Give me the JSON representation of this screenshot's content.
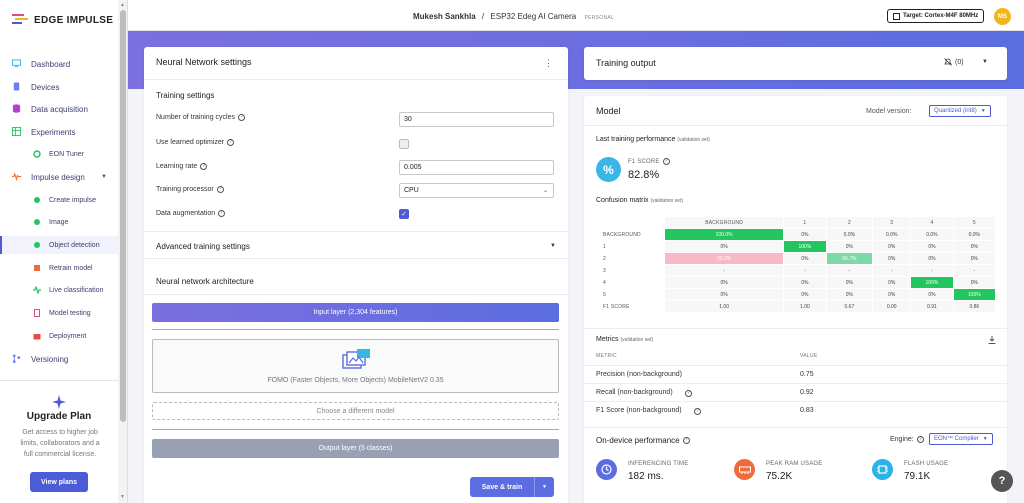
{
  "app": {
    "logo": "EDGE IMPULSE"
  },
  "sidebar": {
    "items": [
      {
        "label": "Dashboard",
        "icon": "monitor-icon"
      },
      {
        "label": "Devices",
        "icon": "device-icon"
      },
      {
        "label": "Data acquisition",
        "icon": "database-icon"
      },
      {
        "label": "Experiments",
        "icon": "table-icon"
      },
      {
        "label": "EON Tuner",
        "icon": "tuner-icon"
      },
      {
        "label": "Impulse design",
        "icon": "pulse-icon"
      },
      {
        "label": "Create impulse"
      },
      {
        "label": "Image"
      },
      {
        "label": "Object detection"
      },
      {
        "label": "Retrain model",
        "icon": "retrain-icon"
      },
      {
        "label": "Live classification",
        "icon": "live-icon"
      },
      {
        "label": "Model testing",
        "icon": "test-icon"
      },
      {
        "label": "Deployment",
        "icon": "deploy-icon"
      },
      {
        "label": "Versioning",
        "icon": "branch-icon"
      }
    ],
    "upgrade": {
      "title": "Upgrade Plan",
      "text": "Get access to higher job limits, collaborators and a full commercial license.",
      "button": "View plans"
    }
  },
  "header": {
    "user": "Mukesh Sankhla",
    "separator": "/",
    "project": "ESP32 Edeg AI Camera",
    "badge": "PERSONAL",
    "target": "Target: Cortex-M4F 80MHz",
    "avatar": "MS"
  },
  "nn_settings": {
    "title": "Neural Network settings",
    "section": "Training settings",
    "fields": {
      "cycles_label": "Number of training cycles",
      "cycles_value": "30",
      "optimizer_label": "Use learned optimizer",
      "optimizer_checked": false,
      "lr_label": "Learning rate",
      "lr_value": "0.005",
      "processor_label": "Training processor",
      "processor_value": "CPU",
      "augmentation_label": "Data augmentation",
      "augmentation_checked": true
    },
    "advanced": "Advanced training settings",
    "architecture_title": "Neural network architecture",
    "input_layer": "Input layer (2,304 features)",
    "model_name": "FOMO (Faster Objects, More Objects) MobileNetV2 0.35",
    "choose_model": "Choose a different model",
    "output_layer": "Output layer (5 classes)",
    "save_train": "Save & train"
  },
  "training_output": {
    "title": "Training output",
    "warnings": "(0)"
  },
  "model": {
    "title": "Model",
    "version_label": "Model version:",
    "version_value": "Quantized (int8)",
    "last_perf": "Last training performance",
    "validation_set": "(validation set)",
    "f1_label": "F1 SCORE",
    "f1_value": "82.8%",
    "confusion_title": "Confusion matrix",
    "confusion": {
      "columns": [
        "BACKGROUND",
        "1",
        "2",
        "3",
        "4",
        "5"
      ],
      "rows": [
        {
          "label": "BACKGROUND",
          "cells": [
            "100.0%",
            "0%",
            "0.0%",
            "0.0%",
            "0.0%",
            "0.0%"
          ]
        },
        {
          "label": "1",
          "cells": [
            "0%",
            "100%",
            "0%",
            "0%",
            "0%",
            "0%"
          ]
        },
        {
          "label": "2",
          "cells": [
            "33.3%",
            "0%",
            "66.7%",
            "0%",
            "0%",
            "0%"
          ]
        },
        {
          "label": "3",
          "cells": [
            "-",
            "-",
            "-",
            "-",
            "-",
            "-"
          ]
        },
        {
          "label": "4",
          "cells": [
            "0%",
            "0%",
            "0%",
            "0%",
            "100%",
            "0%"
          ]
        },
        {
          "label": "5",
          "cells": [
            "0%",
            "0%",
            "0%",
            "0%",
            "0%",
            "100%"
          ]
        }
      ],
      "f1_label": "F1 SCORE",
      "f1_row": [
        "1.00",
        "1.00",
        "0.67",
        "0.00",
        "0.91",
        "0.86"
      ]
    },
    "metrics_title": "Metrics",
    "metrics_header": {
      "metric": "METRIC",
      "value": "VALUE"
    },
    "metrics": [
      {
        "name": "Precision (non-background)",
        "value": "0.75"
      },
      {
        "name": "Recall (non-background)",
        "value": "0.92"
      },
      {
        "name": "F1 Score (non-background)",
        "value": "0.83"
      }
    ],
    "device_perf_title": "On-device performance",
    "engine_label": "Engine:",
    "engine_value": "EON™ Compiler",
    "perf": [
      {
        "label": "INFERENCING TIME",
        "value": "182 ms."
      },
      {
        "label": "PEAK RAM USAGE",
        "value": "75.2K"
      },
      {
        "label": "FLASH USAGE",
        "value": "79.1K"
      }
    ]
  },
  "colors": {
    "accent": "#4b5cd6",
    "green": "#22c55e",
    "pink": "#f8a8b8",
    "lightgreen": "#6ed6a0"
  }
}
